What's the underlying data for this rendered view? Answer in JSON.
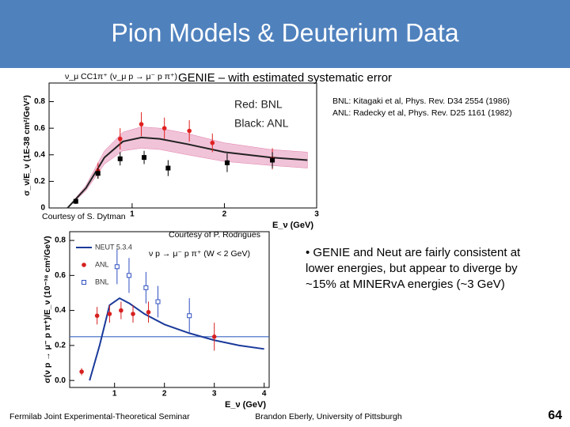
{
  "title": "Pion Models & Deuterium Data",
  "genie_note": "GENIE – with estimated systematic error",
  "references": [
    "BNL:  Kitagaki et al, Phys. Rev. D34 2554 (1986)",
    "ANL:  Radecky et al, Phys. Rev. D25 1161 (1982)"
  ],
  "credits": [
    "Courtesy of S. Dytman",
    "Courtesy of P. Rodrigues"
  ],
  "bullet": "• GENIE and Neut are fairly consistent at lower energies, but appear to diverge by ~15% at MINERvA energies (~3 GeV)",
  "footer": {
    "left": "Fermilab Joint Experimental-Theoretical Seminar",
    "center": "Brandon Eberly, University of Pittsburgh",
    "page": "64"
  },
  "chart_data": [
    {
      "type": "line",
      "title": "ν_μ CC1π⁺ (ν_μ p → μ⁻ p π⁺)",
      "x_label": "E_ν (GeV)",
      "y_label": "σ_ν/E_ν (1E-38 cm²/GeV²)",
      "annotations": [
        "Red:  BNL",
        "Black:  ANL"
      ],
      "xlim": [
        0.1,
        3
      ],
      "xticks": [
        1,
        2,
        3
      ],
      "ylim": [
        0,
        0.94
      ],
      "yticks": [
        0,
        0.2,
        0.4,
        0.6,
        0.8
      ],
      "series": [
        {
          "style": "band-line",
          "color": "#222222",
          "band_color": "#e07aa8",
          "x": [
            0.3,
            0.5,
            0.7,
            0.9,
            1.1,
            1.3,
            1.6,
            2.0,
            2.5,
            2.9
          ],
          "values": [
            0,
            0.15,
            0.38,
            0.5,
            0.53,
            0.52,
            0.48,
            0.42,
            0.38,
            0.36
          ],
          "errors": [
            0,
            0.02,
            0.05,
            0.07,
            0.08,
            0.08,
            0.08,
            0.07,
            0.06,
            0.06
          ]
        },
        {
          "style": "points",
          "marker": "circle",
          "color": "#e02020",
          "x": [
            0.63,
            0.87,
            1.1,
            1.35,
            1.62,
            1.87,
            2.52
          ],
          "values": [
            0.28,
            0.52,
            0.63,
            0.6,
            0.58,
            0.49,
            0.37
          ],
          "errors": [
            0.06,
            0.08,
            0.09,
            0.08,
            0.08,
            0.07,
            0.08
          ]
        },
        {
          "style": "points",
          "marker": "square",
          "color": "#000000",
          "x": [
            0.39,
            0.63,
            0.87,
            1.13,
            1.39,
            2.03,
            2.52
          ],
          "values": [
            0.05,
            0.26,
            0.37,
            0.38,
            0.3,
            0.34,
            0.36
          ],
          "errors": [
            0.02,
            0.04,
            0.05,
            0.05,
            0.06,
            0.07,
            0.06
          ]
        }
      ]
    },
    {
      "type": "line",
      "title": "ν p → μ⁻ p π⁺ (W < 2 GeV)",
      "x_label": "E_ν (GeV)",
      "y_label": "σ(ν p → μ⁻ p π⁺)/E_ν (10⁻³⁸ cm²/GeV)",
      "xlim": [
        0.1,
        4.1
      ],
      "xticks": [
        1,
        2,
        3,
        4
      ],
      "ylim": [
        -0.04,
        0.85
      ],
      "yticks": [
        {
          "value": 0,
          "label": "0.0"
        },
        0.2,
        0.4,
        0.6,
        0.8
      ],
      "hline": 0.25,
      "hline_color": "#3a64c0",
      "legend": "upper left",
      "series": [
        {
          "name": "NEUT 5.3.4",
          "style": "line",
          "color": "#1a3a9a",
          "x": [
            0.5,
            0.7,
            0.9,
            1.1,
            1.3,
            1.6,
            2.0,
            2.5,
            3.0,
            3.5,
            4.0
          ],
          "values": [
            0,
            0.2,
            0.43,
            0.47,
            0.44,
            0.38,
            0.32,
            0.27,
            0.23,
            0.2,
            0.18
          ]
        },
        {
          "name": "ANL",
          "style": "points",
          "marker": "circle",
          "color": "#d62020",
          "x": [
            0.34,
            0.65,
            0.9,
            1.13,
            1.37,
            1.68,
            3.0
          ],
          "values": [
            0.05,
            0.37,
            0.38,
            0.4,
            0.38,
            0.39,
            0.25
          ],
          "errors": [
            0.02,
            0.05,
            0.05,
            0.05,
            0.05,
            0.06,
            0.08
          ]
        },
        {
          "name": "BNL",
          "style": "points",
          "marker": "open-square",
          "color": "#3050c0",
          "x": [
            1.05,
            1.29,
            1.63,
            1.87,
            2.5
          ],
          "values": [
            0.65,
            0.6,
            0.53,
            0.45,
            0.37
          ],
          "errors": [
            0.1,
            0.1,
            0.09,
            0.09,
            0.1
          ]
        }
      ]
    }
  ]
}
